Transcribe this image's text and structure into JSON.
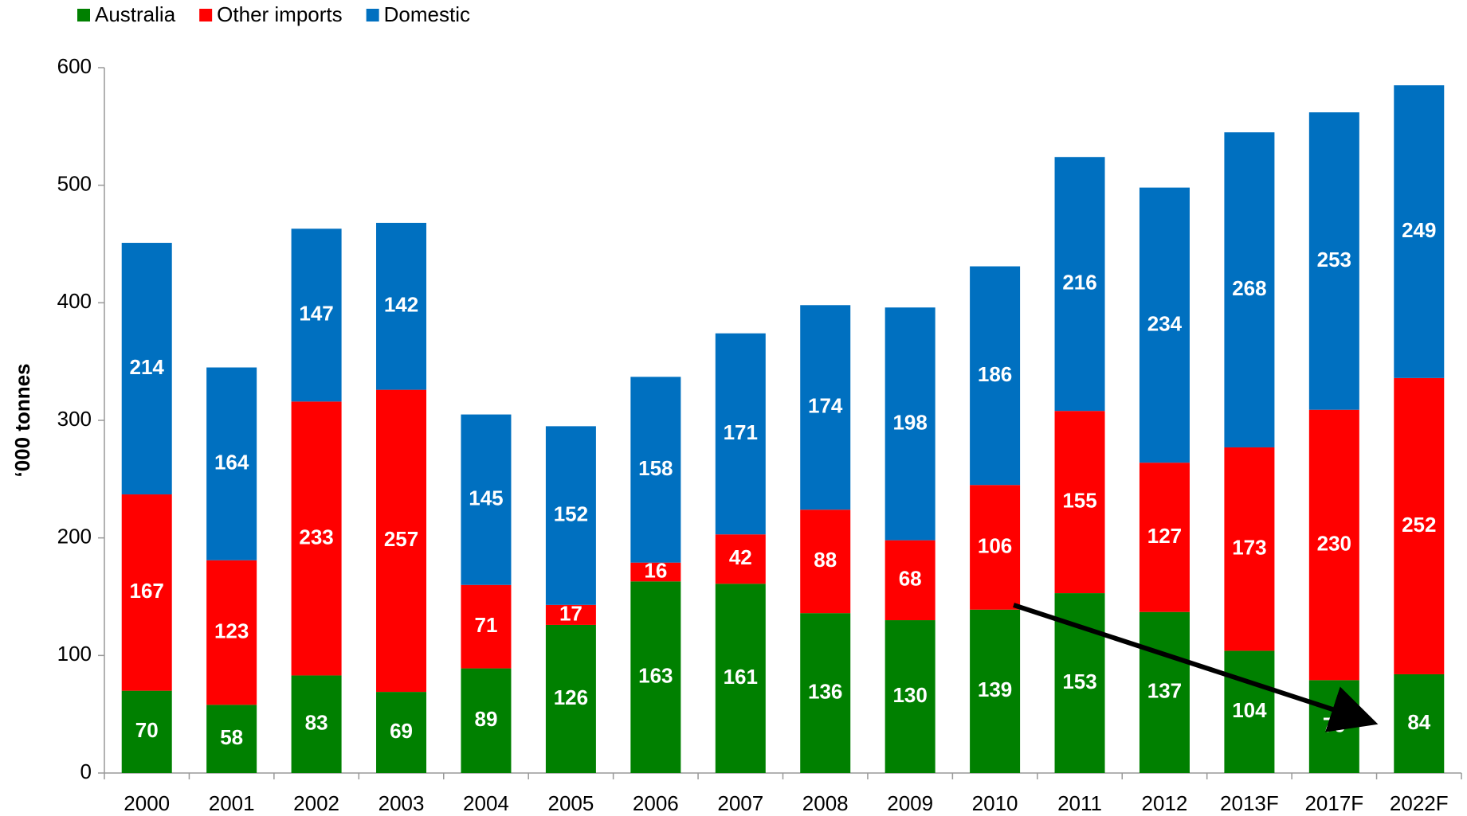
{
  "chart_data": {
    "type": "stacked_bar",
    "y_label": "‘000 tonnes",
    "categories": [
      "2000",
      "2001",
      "2002",
      "2003",
      "2004",
      "2005",
      "2006",
      "2007",
      "2008",
      "2009",
      "2010",
      "2011",
      "2012",
      "2013F",
      "2017F",
      "2022F"
    ],
    "series": [
      {
        "name": "Australia",
        "color": "#008000",
        "values": [
          70,
          58,
          83,
          69,
          89,
          126,
          163,
          161,
          136,
          130,
          139,
          153,
          137,
          104,
          79,
          84
        ]
      },
      {
        "name": "Other imports",
        "color": "#ff0000",
        "values": [
          167,
          123,
          233,
          257,
          71,
          17,
          16,
          42,
          88,
          68,
          106,
          155,
          127,
          173,
          230,
          252
        ]
      },
      {
        "name": "Domestic",
        "color": "#0070c0",
        "values": [
          214,
          164,
          147,
          142,
          145,
          152,
          158,
          171,
          174,
          198,
          186,
          216,
          234,
          268,
          253,
          249
        ]
      }
    ],
    "ylim": [
      0,
      600
    ],
    "yticks": [
      0,
      100,
      200,
      300,
      400,
      500,
      600
    ],
    "grid": false,
    "legend": "top-left"
  }
}
